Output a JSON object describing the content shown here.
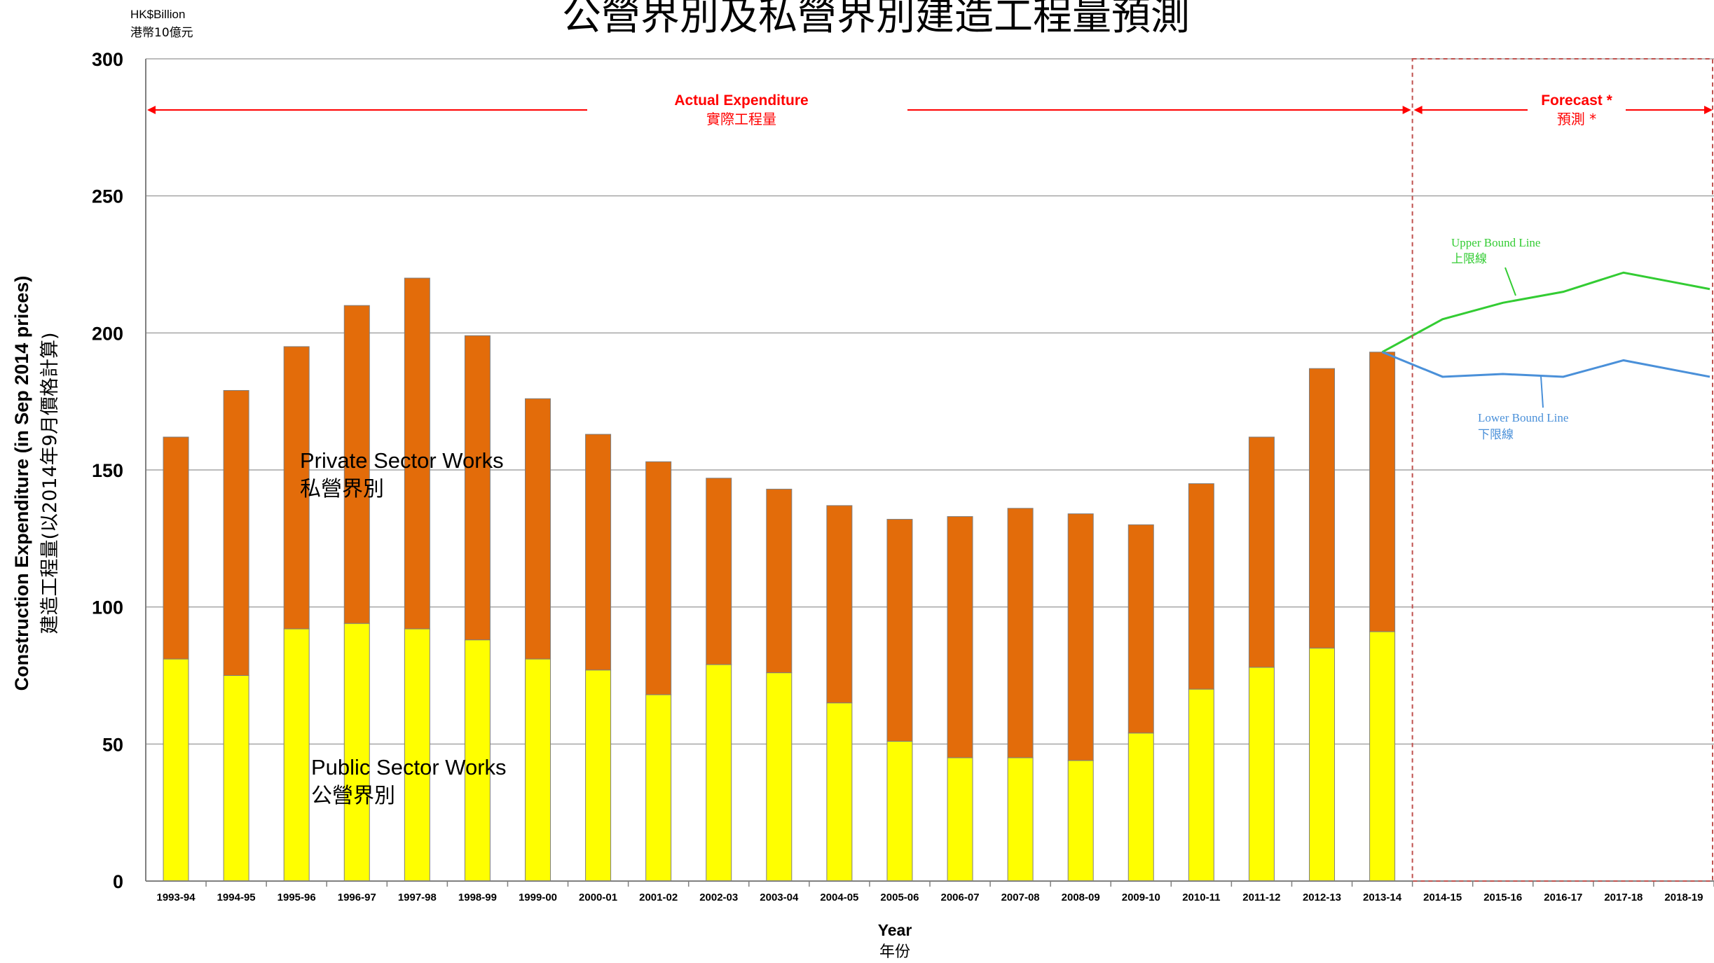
{
  "chart_data": {
    "type": "bar",
    "title": "公營界別及私營界別建造工程量預測",
    "unit_en": "HK$Billion",
    "unit_cn": "港幣10億元",
    "ylabel_en": "Construction Expenditure  (in Sep 2014 prices)",
    "ylabel_cn": "建造工程量(以2014年9月價格計算)",
    "xlabel_en": "Year",
    "xlabel_cn": "年份",
    "ylim": [
      0,
      300
    ],
    "yticks": [
      "0",
      "50",
      "100",
      "150",
      "200",
      "250",
      "300"
    ],
    "grid": true,
    "stacked": true,
    "categories": [
      "1993-94",
      "1994-95",
      "1995-96",
      "1996-97",
      "1997-98",
      "1998-99",
      "1999-00",
      "2000-01",
      "2001-02",
      "2002-03",
      "2003-04",
      "2004-05",
      "2005-06",
      "2006-07",
      "2007-08",
      "2008-09",
      "2009-10",
      "2010-11",
      "2011-12",
      "2012-13",
      "2013-14",
      "2014-15",
      "2015-16",
      "2016-17",
      "2017-18",
      "2018-19"
    ],
    "series": [
      {
        "name": "Public Sector Works",
        "name_cn": "公營界別",
        "color": "#ffff00",
        "values": [
          81,
          75,
          92,
          94,
          92,
          88,
          81,
          77,
          68,
          79,
          76,
          65,
          51,
          45,
          45,
          44,
          54,
          70,
          78,
          85,
          91,
          null,
          null,
          null,
          null,
          null
        ]
      },
      {
        "name": "Private Sector Works",
        "name_cn": "私營界別",
        "color": "#e36c0a",
        "values": [
          81,
          104,
          103,
          116,
          128,
          111,
          95,
          86,
          85,
          68,
          67,
          72,
          81,
          88,
          91,
          90,
          76,
          75,
          84,
          102,
          102,
          null,
          null,
          null,
          null,
          null
        ]
      }
    ],
    "forecast_lines": [
      {
        "name": "Upper Bound Line",
        "name_cn": "上限線",
        "color": "#33cc33",
        "points": [
          [
            "2013-14",
            193
          ],
          [
            "2014-15",
            205
          ],
          [
            "2015-16",
            211
          ],
          [
            "2016-17",
            215
          ],
          [
            "2017-18",
            222
          ],
          [
            "2018-19",
            216
          ]
        ]
      },
      {
        "name": "Lower Bound Line",
        "name_cn": "下限線",
        "color": "#4a90d9",
        "points": [
          [
            "2013-14",
            193
          ],
          [
            "2014-15",
            184
          ],
          [
            "2015-16",
            185
          ],
          [
            "2016-17",
            184
          ],
          [
            "2017-18",
            190
          ],
          [
            "2018-19",
            184
          ]
        ]
      }
    ],
    "annotations": {
      "actual_en": "Actual  Expenditure",
      "actual_cn": "實際工程量",
      "forecast_en": "Forecast *",
      "forecast_cn": "預測 *",
      "forecast_start": "2014-15"
    },
    "colors": {
      "arrow": "#ff0000",
      "grid": "#a6a6a6",
      "forecast_box": "#c0504d"
    }
  }
}
